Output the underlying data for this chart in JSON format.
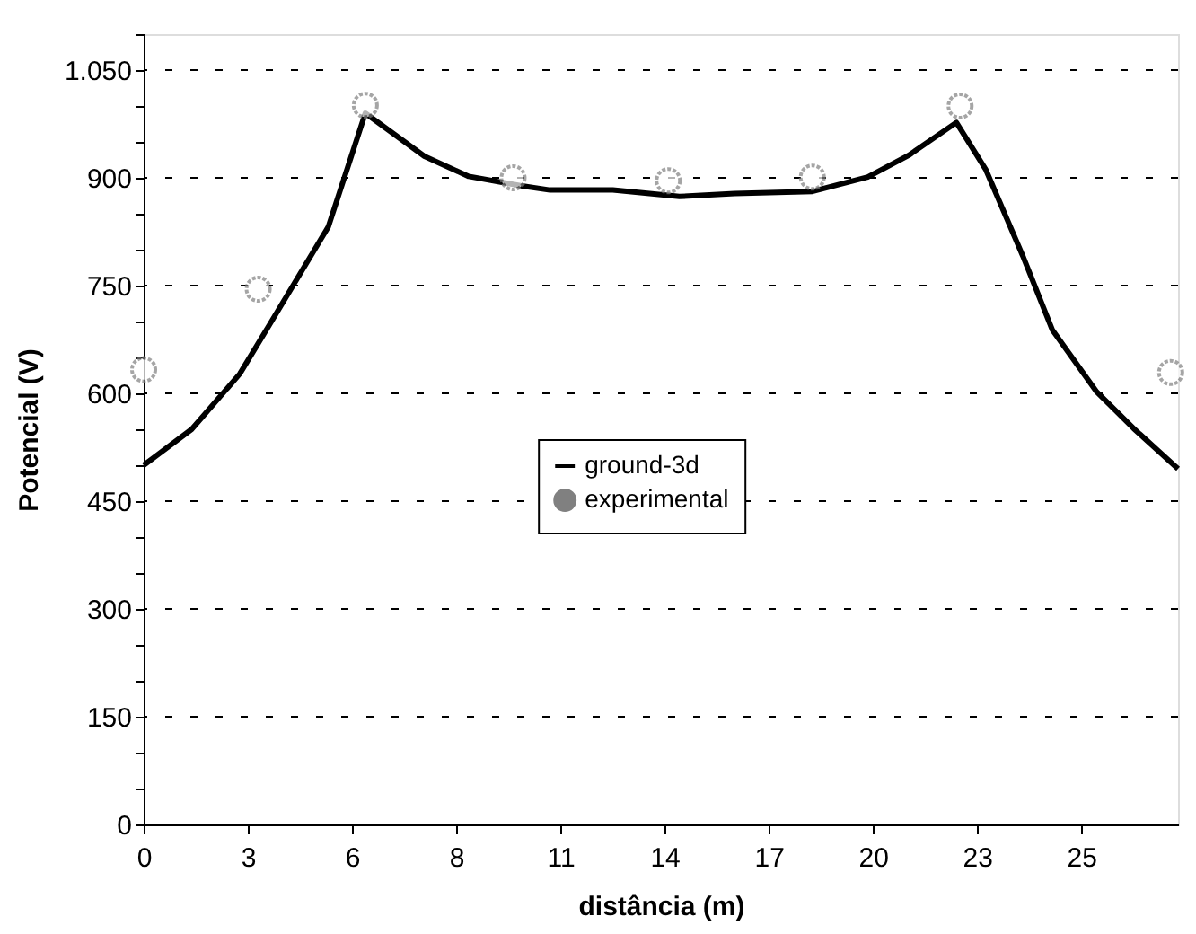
{
  "chart_data": {
    "type": "line",
    "xlabel": "distância (m)",
    "ylabel": "Potencial (V)",
    "xlim": [
      0,
      28
    ],
    "ylim": [
      0,
      1100
    ],
    "xticks": [
      0,
      {
        "value": 2.82,
        "label": "3"
      },
      {
        "value": 5.64,
        "label": "6"
      },
      {
        "value": 8.46,
        "label": "8"
      },
      {
        "value": 11.28,
        "label": "11"
      },
      {
        "value": 14.1,
        "label": "14"
      },
      {
        "value": 16.92,
        "label": "17"
      },
      {
        "value": 19.74,
        "label": "20"
      },
      {
        "value": 22.56,
        "label": "23"
      },
      {
        "value": 25.38,
        "label": "25"
      }
    ],
    "yticks": [
      0,
      {
        "value": 50,
        "label": null
      },
      {
        "value": 100,
        "label": null
      },
      150,
      {
        "value": 200,
        "label": null
      },
      {
        "value": 250,
        "label": null
      },
      300,
      {
        "value": 350,
        "label": null
      },
      {
        "value": 400,
        "label": null
      },
      450,
      {
        "value": 500,
        "label": null
      },
      {
        "value": 550,
        "label": null
      },
      600,
      {
        "value": 650,
        "label": null
      },
      {
        "value": 700,
        "label": null
      },
      750,
      {
        "value": 800,
        "label": null
      },
      {
        "value": 850,
        "label": null
      },
      900,
      {
        "value": 950,
        "label": null
      },
      {
        "value": 1000,
        "label": null
      },
      {
        "value": 1050,
        "label": "1.050"
      },
      {
        "value": 1100,
        "label": null
      }
    ],
    "grid": "y",
    "legend": "center",
    "series": [
      {
        "name": "ground-3d",
        "color": "#000000",
        "marker": "none",
        "line_style": "solid",
        "x": [
          0,
          1.3,
          2.6,
          3.4,
          5.0,
          6.0,
          6.8,
          7.6,
          8.8,
          10.2,
          11.0,
          12.7,
          14.5,
          16.0,
          18.1,
          19.6,
          20.7,
          22.0,
          22.8,
          23.8,
          24.6,
          25.8,
          26.8,
          28
        ],
        "values": [
          500,
          550,
          627,
          695,
          832,
          990,
          960,
          930,
          902,
          889,
          883,
          883,
          874,
          878,
          881,
          901,
          931,
          977,
          911,
          791,
          688,
          602,
          551,
          495
        ]
      },
      {
        "name": "experimental",
        "type": "scatter",
        "color": "#808080",
        "marker": "circle",
        "x": [
          0,
          3.1,
          6.0,
          10.0,
          14.2,
          18.1,
          22.1,
          27.8
        ],
        "values": [
          633,
          745,
          1001,
          900,
          896,
          901,
          1000,
          629
        ]
      }
    ]
  }
}
